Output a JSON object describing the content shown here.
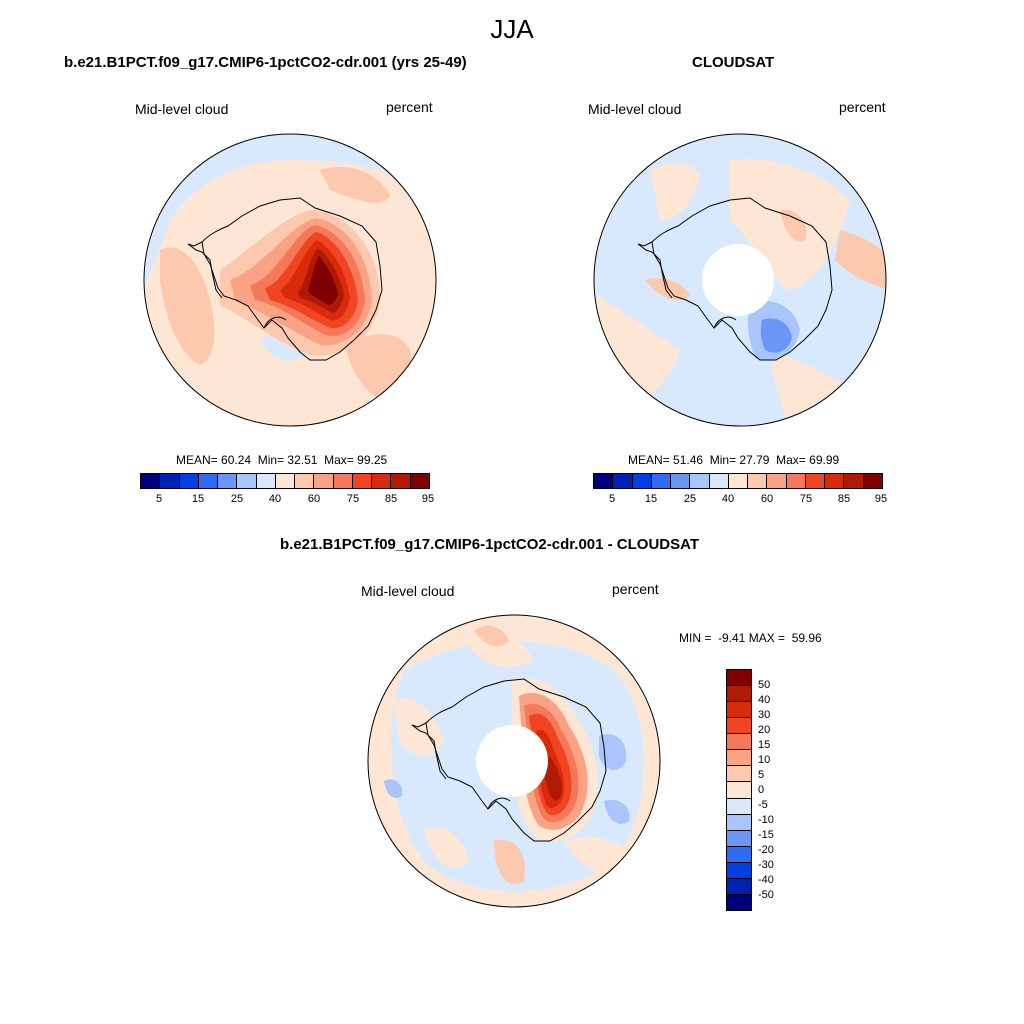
{
  "title": "JJA",
  "colors": {
    "abs_scale": [
      "#00007f",
      "#0022b4",
      "#0040e0",
      "#2f6bf5",
      "#6a97f7",
      "#a8c6fb",
      "#d9e9fd",
      "#fde6d4",
      "#fcc8ae",
      "#f9a384",
      "#f5785a",
      "#f04523",
      "#d92b0b",
      "#b01a04",
      "#7f0000"
    ],
    "diff_scale": [
      "#7f0000",
      "#b01a04",
      "#d92b0b",
      "#f04523",
      "#f5785a",
      "#f9a384",
      "#fcc8ae",
      "#fde6d4",
      "#d9e9fd",
      "#a8c6fb",
      "#6a97f7",
      "#2f6bf5",
      "#0040e0",
      "#0022b4",
      "#00007f"
    ],
    "coast": "#000000"
  },
  "panels": [
    {
      "title": "b.e21.B1PCT.f09_g17.CMIP6-1pctCO2-cdr.001 (yrs 25-49)",
      "field_label": "Mid-level cloud",
      "units_label": "percent",
      "stats": {
        "mean_label": "MEAN=",
        "mean": "60.24",
        "min_label": "Min=",
        "min": "32.51",
        "max_label": "Max=",
        "max": "99.25"
      },
      "colorbar_ticks": [
        "5",
        "15",
        "25",
        "40",
        "60",
        "75",
        "85",
        "95"
      ]
    },
    {
      "title": "CLOUDSAT",
      "field_label": "Mid-level cloud",
      "units_label": "percent",
      "stats": {
        "mean_label": "MEAN=",
        "mean": "51.46",
        "min_label": "Min=",
        "min": "27.79",
        "max_label": "Max=",
        "max": "69.99"
      },
      "colorbar_ticks": [
        "5",
        "15",
        "25",
        "40",
        "60",
        "75",
        "85",
        "95"
      ]
    },
    {
      "title": "b.e21.B1PCT.f09_g17.CMIP6-1pctCO2-cdr.001 - CLOUDSAT",
      "field_label": "Mid-level cloud",
      "units_label": "percent",
      "stats_text": "MIN =  -9.41 MAX =  59.96",
      "colorbar_ticks": [
        "50",
        "40",
        "30",
        "20",
        "15",
        "10",
        "5",
        "0",
        "-5",
        "-10",
        "-15",
        "-20",
        "-30",
        "-40",
        "-50"
      ]
    }
  ]
}
